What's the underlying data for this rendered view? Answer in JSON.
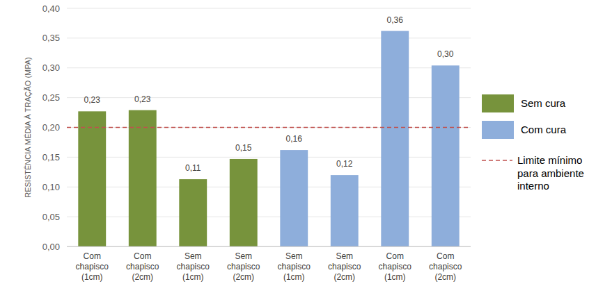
{
  "chart_data": {
    "type": "bar",
    "y_label": "RESISTÊNCIA MÉDIA À TRAÇÃO (MPA)",
    "categories": [
      "Com chapisco (1cm)",
      "Com chapisco (2cm)",
      "Sem chapisco (1cm)",
      "Sem chapisco (2cm)",
      "Sem chapisco (1cm)",
      "Sem chapisco (2cm)",
      "Com chapisco (1cm)",
      "Com chapisco (2cm)"
    ],
    "series": [
      {
        "name": "Sem cura",
        "color": "#77933c",
        "values": [
          0.227,
          0.229,
          0.113,
          0.147,
          null,
          null,
          null,
          null
        ],
        "value_labels": [
          "0,23",
          "0,23",
          "0,11",
          "0,15",
          null,
          null,
          null,
          null
        ]
      },
      {
        "name": "Com cura",
        "color": "#8eaedb",
        "values": [
          null,
          null,
          null,
          null,
          0.162,
          0.12,
          0.362,
          0.304
        ],
        "value_labels": [
          null,
          null,
          null,
          null,
          "0,16",
          "0,12",
          "0,36",
          "0,30"
        ]
      }
    ],
    "reference_line": {
      "value": 0.2,
      "label": "Limite mínimo para ambiente interno",
      "color": "#c0504d",
      "line_style": "dashed"
    },
    "ylim": [
      0,
      0.4
    ],
    "yticks": [
      {
        "value": 0,
        "label": "0,00"
      },
      {
        "value": 0.05,
        "label": "0,05"
      },
      {
        "value": 0.1,
        "label": "0,10"
      },
      {
        "value": 0.15,
        "label": "0,15"
      },
      {
        "value": 0.2,
        "label": "0,20"
      },
      {
        "value": 0.25,
        "label": "0,25"
      },
      {
        "value": 0.3,
        "label": "0,30"
      },
      {
        "value": 0.35,
        "label": "0,35"
      },
      {
        "value": 0.4,
        "label": "0,40"
      }
    ],
    "grid": true,
    "data_labels": true,
    "legend": "right"
  }
}
